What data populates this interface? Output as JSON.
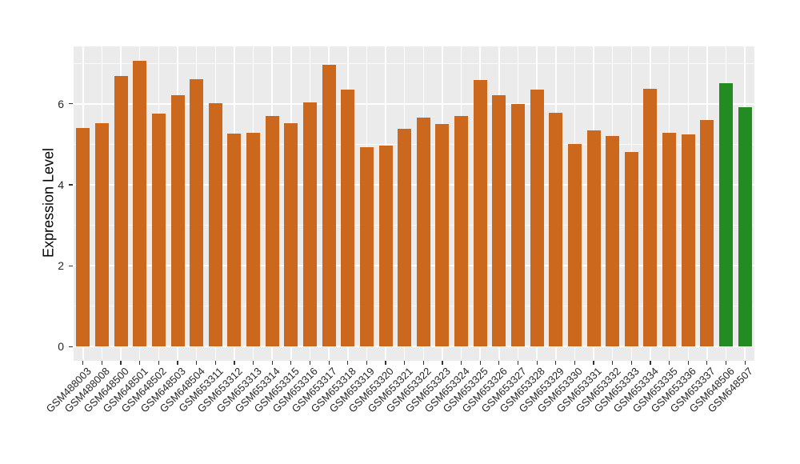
{
  "figure": {
    "background": "#FFFFFF",
    "panel_bg": "#EBEBEB",
    "grid_color": "#FFFFFF",
    "tick_color": "#333333",
    "axis_text_color": "#262626",
    "axis_title_color": "#000000"
  },
  "chart_data": {
    "type": "bar",
    "title": "",
    "xlabel": "",
    "ylabel": "Expression Level",
    "categories": [
      "GSM488003",
      "GSM488008",
      "GSM648500",
      "GSM648501",
      "GSM648502",
      "GSM648503",
      "GSM648504",
      "GSM653311",
      "GSM653312",
      "GSM653313",
      "GSM653314",
      "GSM653315",
      "GSM653316",
      "GSM653317",
      "GSM653318",
      "GSM653319",
      "GSM653320",
      "GSM653321",
      "GSM653322",
      "GSM653323",
      "GSM653324",
      "GSM653325",
      "GSM653326",
      "GSM653327",
      "GSM653328",
      "GSM653329",
      "GSM653330",
      "GSM653331",
      "GSM653332",
      "GSM653333",
      "GSM653334",
      "GSM653335",
      "GSM653336",
      "GSM653337",
      "GSM648506",
      "GSM648507"
    ],
    "values": [
      5.41,
      5.53,
      6.69,
      7.06,
      5.76,
      6.22,
      6.61,
      6.01,
      5.27,
      5.28,
      5.7,
      5.53,
      6.03,
      6.97,
      6.35,
      4.93,
      4.97,
      5.38,
      5.67,
      5.51,
      5.7,
      6.59,
      6.22,
      5.99,
      6.35,
      5.78,
      5.01,
      5.34,
      5.21,
      4.81,
      6.38,
      5.29,
      5.25,
      5.61,
      6.52,
      5.92
    ],
    "bar_color_default": "#CC671E",
    "bar_color_highlight": "#228B22",
    "highlight_categories": [
      "GSM648506",
      "GSM648507"
    ],
    "yticks": [
      0,
      2,
      4,
      6
    ],
    "minor_yticks": [
      1,
      3,
      5,
      7
    ],
    "ylim": [
      -0.35,
      7.42
    ],
    "bar_width_ratio": 0.72,
    "grid": true,
    "legend": "none"
  }
}
